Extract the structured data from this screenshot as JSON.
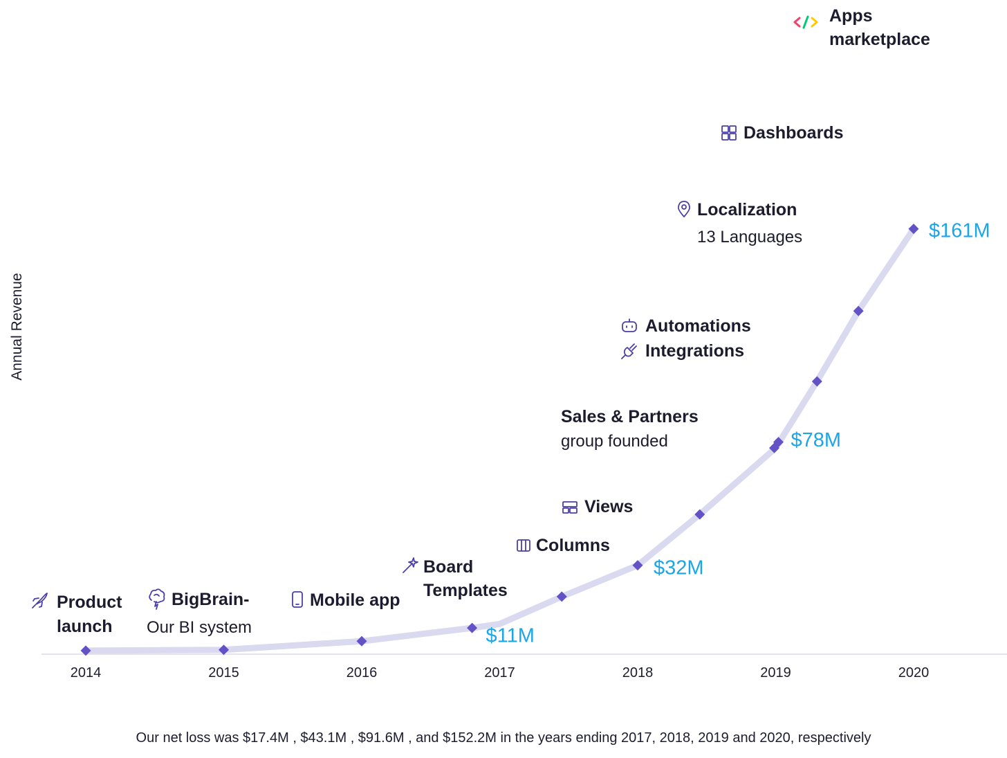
{
  "chart_data": {
    "type": "line",
    "title": "",
    "xlabel": "",
    "ylabel": "Annual Revenue",
    "x_ticks": [
      "2014",
      "2015",
      "2016",
      "2017",
      "2018",
      "2019",
      "2020"
    ],
    "xlim": [
      2014,
      2020.7
    ],
    "ylim": [
      0,
      161
    ],
    "grid": false,
    "legend": "none",
    "series": [
      {
        "values": [
          {
            "x": 2014.0,
            "y": 0.2
          },
          {
            "x": 2015.0,
            "y": 0.4
          },
          {
            "x": 2016.0,
            "y": 2.6
          },
          {
            "x": 2016.8,
            "y": 6
          },
          {
            "x": 2017.0,
            "y": 7
          },
          {
            "x": 2017.45,
            "y": 14
          },
          {
            "x": 2018.0,
            "y": 22
          },
          {
            "x": 2018.45,
            "y": 35
          },
          {
            "x": 2019.0,
            "y": 52
          },
          {
            "x": 2019.3,
            "y": 69
          },
          {
            "x": 2019.6,
            "y": 87
          },
          {
            "x": 2020.0,
            "y": 108
          }
        ]
      }
    ],
    "markers": [
      {
        "x": 2014.0,
        "y": 0.2
      },
      {
        "x": 2015.0,
        "y": 0.4
      },
      {
        "x": 2016.0,
        "y": 2.6
      },
      {
        "x": 2016.8,
        "y": 6
      },
      {
        "x": 2017.45,
        "y": 14
      },
      {
        "x": 2018.0,
        "y": 22
      },
      {
        "x": 2018.45,
        "y": 35
      },
      {
        "x": 2018.99,
        "y": 52
      },
      {
        "x": 2019.02,
        "y": 53.5
      },
      {
        "x": 2019.3,
        "y": 69
      },
      {
        "x": 2019.6,
        "y": 87
      },
      {
        "x": 2020.0,
        "y": 108
      }
    ],
    "revenue_labels": [
      {
        "text": "$11M",
        "x": 2017.0,
        "y": 7
      },
      {
        "text": "$32M",
        "x": 2018.0,
        "y": 22
      },
      {
        "text": "$78M",
        "x": 2019.0,
        "y": 52
      },
      {
        "text": "$161M",
        "x": 2020.0,
        "y": 108
      }
    ],
    "milestones": [
      {
        "icon": "rocket-icon",
        "title_lines": [
          "Product",
          "launch"
        ],
        "sub": ""
      },
      {
        "icon": "brain-icon",
        "title_lines": [
          "BigBrain-"
        ],
        "sub": "Our BI system"
      },
      {
        "icon": "mobile-phone-icon",
        "title_lines": [
          "Mobile app"
        ],
        "sub": ""
      },
      {
        "icon": "magic-wand-icon",
        "title_lines": [
          "Board",
          "Templates"
        ],
        "sub": ""
      },
      {
        "icon": "columns-icon",
        "title_lines": [
          "Columns"
        ],
        "sub": ""
      },
      {
        "icon": "layout-views-icon",
        "title_lines": [
          "Views"
        ],
        "sub": ""
      },
      {
        "icon": "",
        "title_lines": [
          "Sales & Partners"
        ],
        "sub": "group founded"
      },
      {
        "icon": "robot-icon",
        "title_lines": [
          "Automations"
        ],
        "sub": ""
      },
      {
        "icon": "plug-icon",
        "title_lines": [
          "Integrations"
        ],
        "sub": ""
      },
      {
        "icon": "map-pin-icon",
        "title_lines": [
          "Localization"
        ],
        "sub": "13 Languages"
      },
      {
        "icon": "grid-dashboard-icon",
        "title_lines": [
          "Dashboards"
        ],
        "sub": ""
      },
      {
        "icon": "code-icon",
        "title_lines": [
          "Apps",
          "marketplace"
        ],
        "sub": ""
      }
    ],
    "footnote": "Our net loss was $17.4M , $43.1M , $91.6M , and $152.2M in the years ending 2017, 2018, 2019 and 2020, respectively"
  },
  "colors": {
    "line": "#d9d9f0",
    "marker": "#6252c5",
    "revenue_text": "#1ba6e8",
    "icon": "#4a3fa8",
    "axis": "#e3e3ea",
    "text": "#1c1c2e"
  }
}
